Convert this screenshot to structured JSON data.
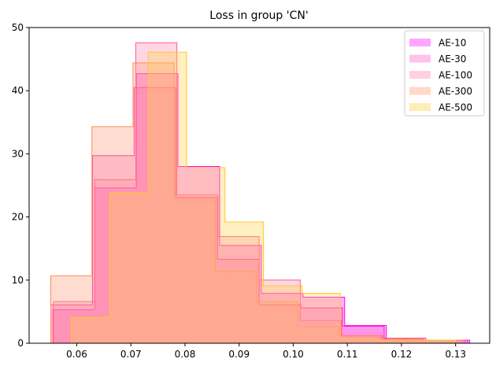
{
  "chart_data": {
    "type": "histogram",
    "title": "Loss in group 'CN'",
    "xlabel": "",
    "ylabel": "",
    "xlim": [
      0.0512,
      0.1363
    ],
    "ylim": [
      0,
      50
    ],
    "xticks": [
      0.06,
      0.07,
      0.08,
      0.09,
      0.1,
      0.11,
      0.12,
      0.13
    ],
    "xtick_labels": [
      "0.06",
      "0.07",
      "0.08",
      "0.09",
      "0.10",
      "0.11",
      "0.12",
      "0.13"
    ],
    "yticks": [
      0,
      10,
      20,
      30,
      40,
      50
    ],
    "ytick_labels": [
      "0",
      "10",
      "20",
      "30",
      "40",
      "50"
    ],
    "grid": false,
    "legend_position": "top-right",
    "series": [
      {
        "name": "AE-10",
        "color": "#ff00ff",
        "fill": "#ff00ff",
        "fill_alpha": 0.3,
        "edges": [
          0.0556,
          0.0633,
          0.071,
          0.0787,
          0.0864,
          0.0941,
          0.1018,
          0.1095,
          0.1172,
          0.1249,
          0.1326
        ],
        "counts": [
          5.3,
          24.6,
          42.7,
          28.0,
          15.5,
          7.9,
          7.3,
          2.8,
          0.5,
          0.5
        ]
      },
      {
        "name": "AE-30",
        "color": "#ff1fb0",
        "fill": "#ff4fc0",
        "fill_alpha": 0.3,
        "edges": [
          0.0552,
          0.0629,
          0.0706,
          0.0783,
          0.086,
          0.0937,
          0.1014,
          0.1091,
          0.1168,
          0.1245,
          0.1322
        ],
        "counts": [
          6.1,
          29.7,
          40.5,
          23.1,
          13.3,
          6.1,
          5.6,
          2.7,
          0.8,
          0.5
        ]
      },
      {
        "name": "AE-100",
        "color": "#ff5a8a",
        "fill": "#ff7aa5",
        "fill_alpha": 0.3,
        "edges": [
          0.0557,
          0.0633,
          0.0709,
          0.0785,
          0.0861,
          0.0937,
          0.1013,
          0.1089,
          0.1165,
          0.1241,
          0.1317
        ],
        "counts": [
          6.6,
          25.9,
          47.6,
          23.5,
          16.9,
          10.0,
          3.6,
          1.2,
          0.6,
          0.5
        ]
      },
      {
        "name": "AE-300",
        "color": "#ff8a5c",
        "fill": "#ffa07a",
        "fill_alpha": 0.35,
        "edges": [
          0.0552,
          0.0628,
          0.0704,
          0.078,
          0.0856,
          0.0932,
          0.1008,
          0.1084,
          0.116,
          0.1236,
          0.1312
        ],
        "counts": [
          10.7,
          34.3,
          44.4,
          22.7,
          11.4,
          6.6,
          2.6,
          1.2,
          0.7,
          0.5
        ]
      },
      {
        "name": "AE-500",
        "color": "#ffc828",
        "fill": "#ffd24d",
        "fill_alpha": 0.35,
        "edges": [
          0.059,
          0.0661,
          0.0732,
          0.0803,
          0.0874,
          0.0945,
          0.1016,
          0.1087,
          0.1158,
          0.1229,
          0.13
        ],
        "counts": [
          4.1,
          23.9,
          46.1,
          27.8,
          19.2,
          9.1,
          7.9,
          0.8,
          0.5,
          0.5
        ]
      }
    ]
  }
}
